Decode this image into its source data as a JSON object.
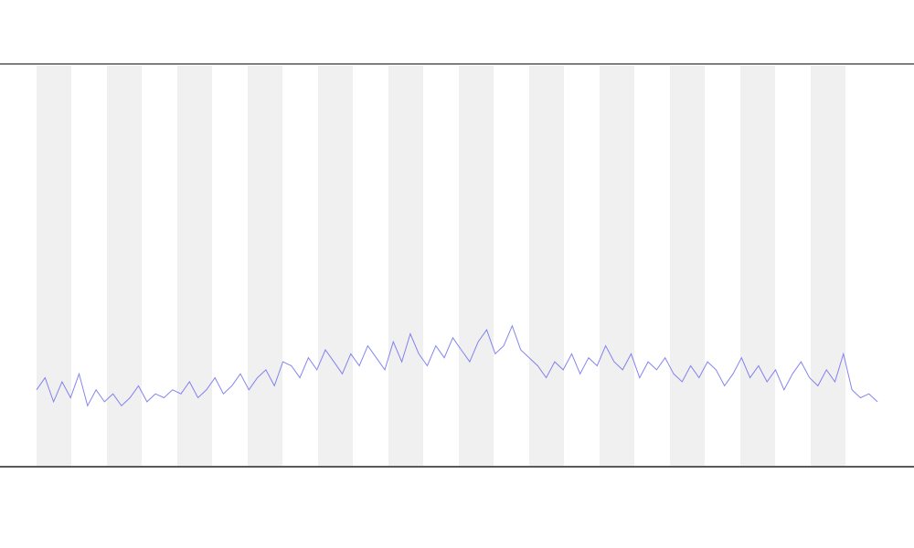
{
  "chart_data": {
    "type": "line",
    "x": [
      0,
      1,
      2,
      3,
      4,
      5,
      6,
      7,
      8,
      9,
      10,
      11,
      12,
      13,
      14,
      15,
      16,
      17,
      18,
      19,
      20,
      21,
      22,
      23,
      24,
      25,
      26,
      27,
      28,
      29,
      30,
      31,
      32,
      33,
      34,
      35,
      36,
      37,
      38,
      39,
      40,
      41,
      42,
      43,
      44,
      45,
      46,
      47,
      48,
      49,
      50,
      51,
      52,
      53,
      54,
      55,
      56,
      57,
      58,
      59,
      60,
      61,
      62,
      63,
      64,
      65,
      66,
      67,
      68,
      69,
      70,
      71,
      72,
      73,
      74,
      75,
      76,
      77,
      78,
      79,
      80,
      81,
      82,
      83,
      84,
      85,
      86,
      87,
      88,
      89,
      90,
      91,
      92,
      93,
      94,
      95,
      96,
      97,
      98,
      99
    ],
    "xlim": [
      0,
      99
    ],
    "ylim": [
      0,
      100
    ],
    "series": [
      {
        "color": "#6666ee",
        "values": [
          19,
          22,
          16,
          21,
          17,
          23,
          15,
          19,
          16,
          18,
          15,
          17,
          20,
          16,
          18,
          17,
          19,
          18,
          21,
          17,
          19,
          22,
          18,
          20,
          23,
          19,
          22,
          24,
          20,
          26,
          25,
          22,
          27,
          24,
          29,
          26,
          23,
          28,
          25,
          30,
          27,
          24,
          31,
          26,
          33,
          28,
          25,
          30,
          27,
          32,
          29,
          26,
          31,
          34,
          28,
          30,
          35,
          29,
          27,
          25,
          22,
          26,
          24,
          28,
          23,
          27,
          25,
          30,
          26,
          24,
          28,
          22,
          26,
          24,
          27,
          23,
          21,
          25,
          22,
          26,
          24,
          20,
          23,
          27,
          22,
          25,
          21,
          24,
          19,
          23,
          26,
          22,
          20,
          24,
          21,
          28,
          19,
          17,
          18,
          16
        ]
      }
    ]
  }
}
